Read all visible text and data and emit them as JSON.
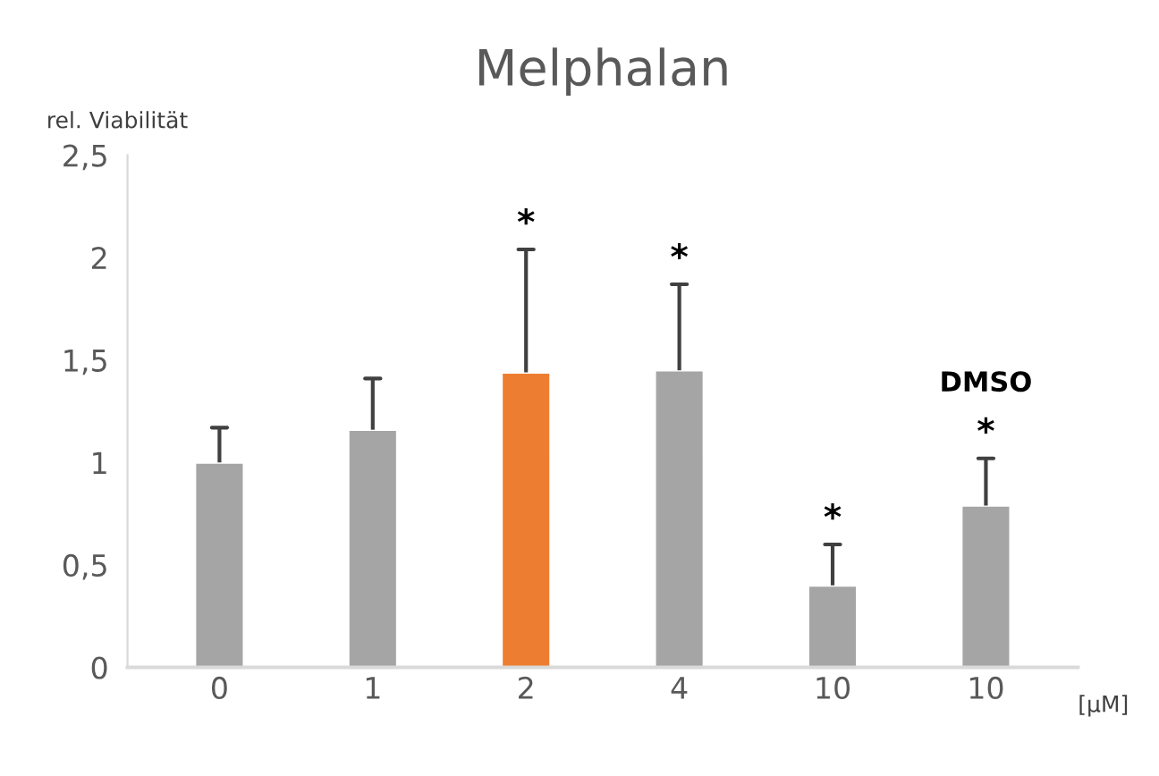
{
  "chart_data": {
    "type": "bar",
    "title": "Melphalan",
    "ylabel": "rel. Viabilität",
    "xlabel": "[µM]",
    "categories": [
      "0",
      "1",
      "2",
      "4",
      "10",
      "10"
    ],
    "values": [
      1.0,
      1.16,
      1.44,
      1.45,
      0.4,
      0.79
    ],
    "colors": [
      "#a5a5a5",
      "#a5a5a5",
      "#ed7d31",
      "#a5a5a5",
      "#a5a5a5",
      "#a5a5a5"
    ],
    "errors": [
      [
        1.0,
        1.17
      ],
      [
        1.16,
        1.41
      ],
      [
        1.44,
        2.04
      ],
      [
        1.45,
        1.87
      ],
      [
        0.4,
        0.6
      ],
      [
        0.79,
        1.02
      ]
    ],
    "ylim": [
      0,
      2.5
    ],
    "yticks": [
      0,
      {
        "value": 0.5,
        "label": "0,5"
      },
      1,
      {
        "value": 1.5,
        "label": "1,5"
      },
      2,
      {
        "value": 2.5,
        "label": "2,5"
      }
    ],
    "annotations": [
      {
        "text": "*",
        "x": "2",
        "y": 2.04
      },
      {
        "text": "*",
        "x": "4",
        "y": 1.87
      },
      {
        "text": "*",
        "x": "10",
        "y": 0.6
      },
      "*",
      "DMSO"
    ],
    "grid": false,
    "legend": false
  }
}
